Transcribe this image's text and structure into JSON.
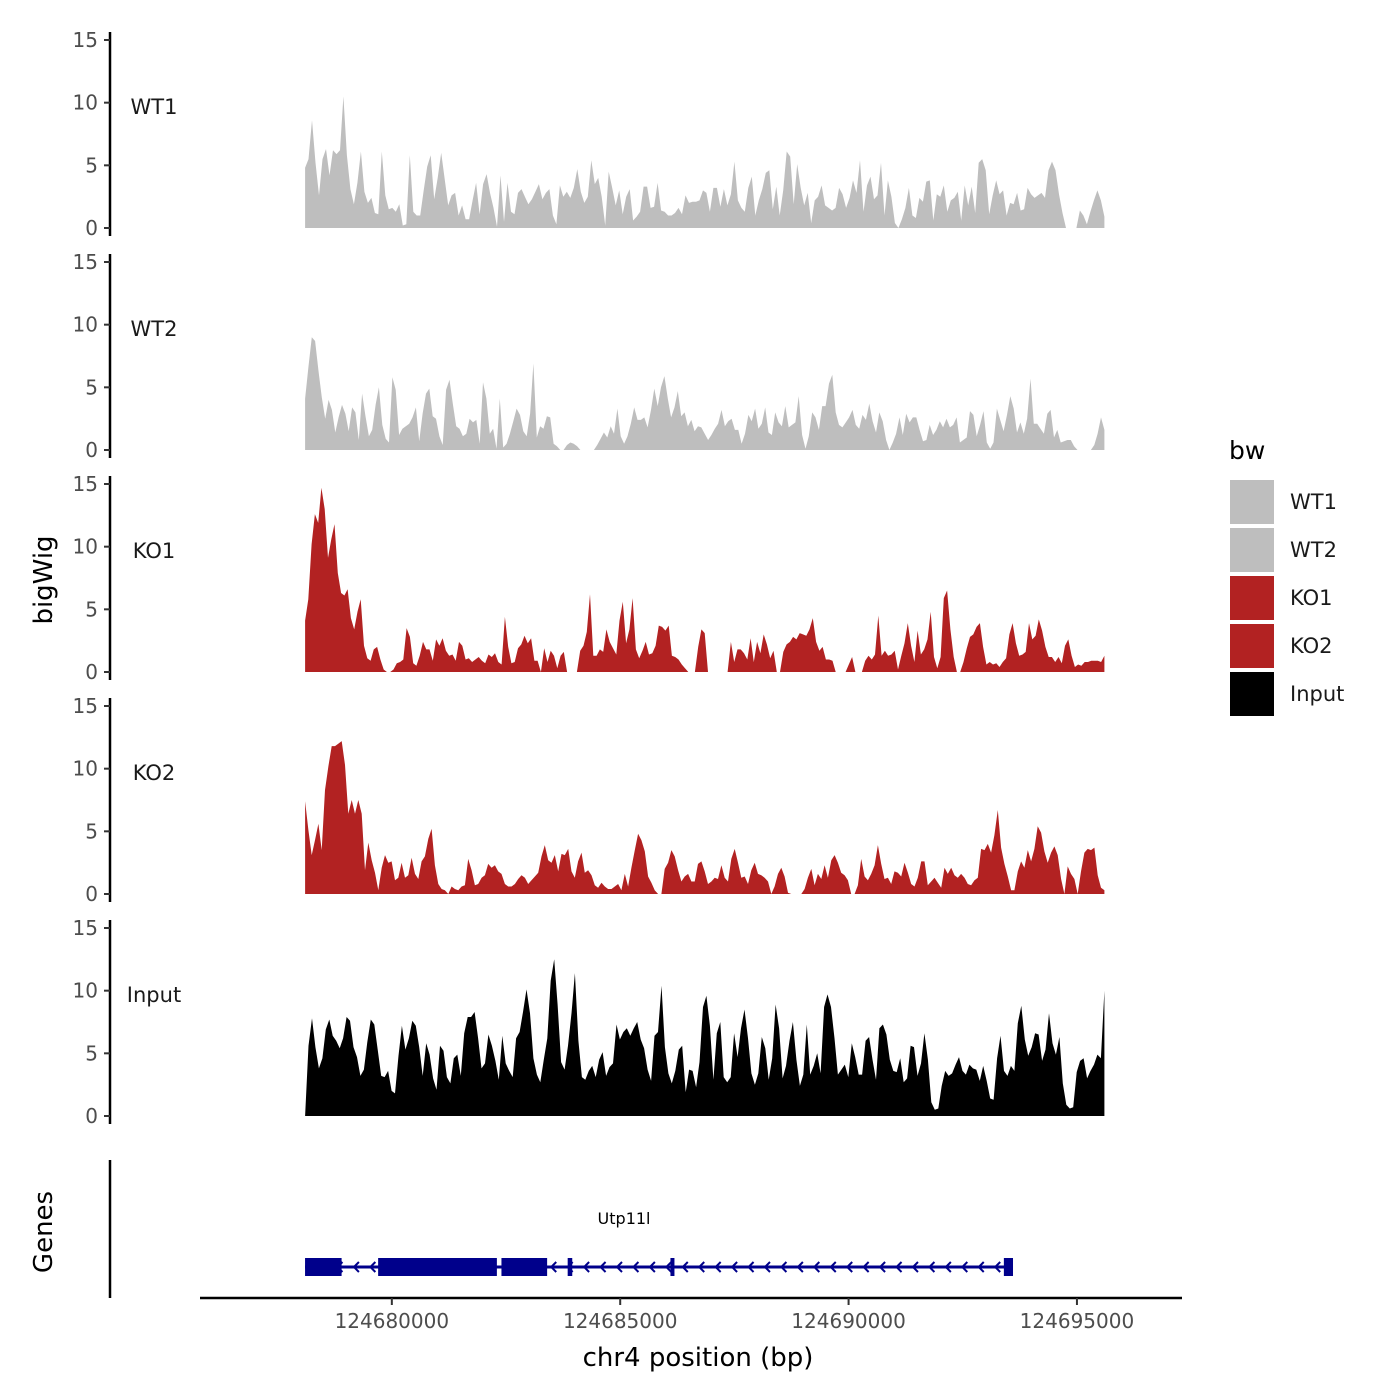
{
  "chart_data": {
    "type": "area",
    "ylabel": "bigWig",
    "xlabel": "chr4 position (bp)",
    "xlim": [
      124675800,
      124697300
    ],
    "x_ticks": [
      124680000,
      124685000,
      124690000,
      124695000
    ],
    "x_tick_labels": [
      "124680000",
      "124685000",
      "124690000",
      "124695000"
    ],
    "data_range": [
      124678100,
      124695600
    ],
    "y_ticks": [
      0,
      5,
      10,
      15
    ],
    "y_tick_labels": [
      "0",
      "5",
      "10",
      "15"
    ],
    "ylim": [
      0,
      15
    ],
    "tracks": [
      {
        "name": "WT1",
        "color": "#bebebe",
        "values": [
          4.8,
          5.5,
          8.6,
          5.2,
          2.6,
          5.5,
          6.3,
          4.2,
          6.2,
          5.9,
          6.2,
          10.5,
          5.8,
          3.1,
          1.9,
          3.6,
          6.1,
          2.9,
          2.0,
          2.4,
          1.2,
          1.1,
          6.1,
          2.6,
          1.5,
          1.6,
          1.3,
          1.9,
          0.2,
          0.3,
          5.8,
          1.3,
          1.0,
          1.0,
          3.0,
          4.9,
          5.8,
          2.3,
          4.0,
          6.0,
          3.9,
          1.8,
          2.6,
          2.8,
          1.0,
          1.8,
          0.7,
          0.7,
          2.2,
          3.6,
          1.1,
          3.5,
          4.3,
          2.8,
          1.6,
          0.1,
          4.2,
          0.5,
          3.6,
          1.3,
          1.1,
          2.8,
          3.1,
          2.5,
          1.9,
          2.3,
          2.9,
          3.5,
          2.3,
          2.8,
          3.1,
          1.0,
          0.3,
          3.4,
          2.5,
          2.9,
          2.4,
          3.2,
          4.7,
          2.9,
          2.0,
          2.5,
          5.4,
          3.5,
          4.0,
          2.5,
          0.2,
          4.5,
          3.2,
          1.8,
          3.0,
          1.1,
          2.5,
          3.1,
          0.6,
          0.9,
          1.3,
          3.3,
          3.3,
          1.6,
          1.7,
          3.6,
          1.4,
          1.3,
          1.0,
          1.0,
          1.2,
          1.6,
          1.1,
          2.6,
          2.0,
          2.1,
          2.1,
          2.2,
          3.0,
          2.8,
          1.3,
          3.2,
          3.2,
          1.7,
          3.1,
          1.8,
          2.7,
          5.3,
          2.2,
          1.6,
          1.3,
          3.2,
          4.1,
          1.0,
          2.2,
          3.1,
          4.4,
          4.6,
          1.5,
          3.3,
          1.0,
          3.0,
          6.1,
          5.7,
          1.9,
          5.1,
          3.2,
          1.8,
          2.8,
          0.4,
          2.2,
          2.5,
          3.4,
          1.8,
          1.6,
          1.4,
          1.6,
          3.2,
          2.7,
          1.6,
          2.4,
          3.8,
          2.8,
          5.4,
          1.3,
          3.4,
          4.1,
          2.3,
          2.6,
          5.2,
          1.0,
          3.8,
          2.5,
          0.4,
          0.0,
          0.7,
          1.6,
          3.2,
          1.0,
          0.8,
          2.4,
          2.1,
          3.7,
          3.8,
          0.6,
          2.7,
          2.5,
          3.4,
          1.3,
          2.2,
          2.4,
          2.9,
          0.6,
          3.4,
          1.8,
          3.3,
          1.2,
          5.2,
          5.5,
          4.6,
          1.1,
          2.6,
          3.8,
          2.7,
          3.0,
          1.0,
          2.0,
          1.9,
          2.8,
          1.4,
          1.5,
          3.2,
          2.7,
          2.4,
          2.6,
          2.8,
          2.4,
          4.6,
          5.3,
          4.6,
          2.7,
          1.2,
          0.0,
          0.0,
          0.0,
          0.0,
          1.4,
          1.0,
          0.3,
          1.3,
          2.2,
          3.0,
          2.2,
          0.9
        ]
      },
      {
        "name": "WT2",
        "color": "#bebebe",
        "values": [
          4.1,
          6.6,
          9.0,
          8.7,
          6.3,
          4.2,
          2.5,
          4.0,
          3.2,
          1.4,
          2.6,
          3.6,
          2.9,
          1.5,
          3.4,
          3.0,
          0.8,
          4.5,
          2.7,
          1.1,
          1.6,
          3.6,
          5.0,
          2.0,
          0.9,
          0.6,
          5.8,
          4.8,
          1.2,
          1.7,
          1.9,
          2.1,
          2.6,
          3.4,
          0.7,
          2.9,
          4.5,
          4.9,
          2.7,
          2.5,
          1.1,
          0.4,
          4.8,
          5.6,
          3.7,
          1.9,
          1.7,
          1.1,
          1.3,
          2.5,
          2.2,
          2.4,
          0.5,
          5.4,
          4.1,
          1.3,
          1.7,
          0.1,
          4.1,
          0.2,
          0.5,
          1.3,
          2.3,
          3.3,
          2.8,
          1.5,
          1.1,
          2.9,
          6.9,
          1.0,
          1.9,
          1.7,
          2.7,
          2.6,
          0.5,
          0.3,
          0.0,
          0.0,
          0.4,
          0.6,
          0.5,
          0.3,
          0.0,
          0.0,
          0.0,
          0.0,
          0.0,
          0.4,
          0.9,
          1.4,
          1.0,
          1.9,
          1.3,
          3.3,
          1.1,
          0.5,
          1.1,
          2.1,
          3.4,
          2.4,
          2.4,
          2.6,
          1.8,
          3.2,
          4.9,
          3.5,
          5.0,
          5.9,
          4.1,
          2.6,
          3.4,
          4.7,
          2.7,
          3.0,
          1.9,
          2.4,
          1.5,
          1.9,
          1.8,
          1.3,
          0.8,
          1.2,
          1.7,
          2.1,
          3.2,
          1.9,
          2.3,
          2.5,
          1.6,
          1.6,
          0.5,
          1.3,
          2.8,
          2.3,
          3.3,
          1.7,
          2.1,
          3.4,
          1.4,
          1.2,
          3.0,
          2.2,
          1.9,
          3.5,
          1.8,
          2.0,
          2.2,
          4.3,
          1.2,
          0.1,
          1.1,
          3.0,
          2.6,
          1.6,
          3.5,
          3.5,
          5.3,
          6.0,
          3.0,
          2.0,
          1.8,
          2.2,
          2.6,
          3.2,
          2.0,
          1.7,
          2.8,
          2.4,
          3.7,
          2.3,
          1.4,
          3.0,
          2.3,
          0.8,
          0.0,
          0.6,
          1.3,
          2.6,
          1.2,
          2.9,
          2.2,
          2.6,
          2.6,
          1.6,
          0.7,
          0.8,
          2.0,
          1.2,
          1.6,
          2.3,
          1.8,
          2.5,
          1.8,
          2.0,
          2.6,
          0.6,
          0.8,
          1.0,
          3.1,
          2.8,
          1.1,
          2.0,
          3.1,
          0.6,
          0.1,
          0.6,
          3.3,
          2.4,
          1.5,
          2.8,
          4.3,
          3.3,
          1.4,
          2.2,
          1.3,
          2.5,
          5.7,
          2.1,
          2.1,
          1.7,
          1.3,
          2.9,
          3.2,
          1.0,
          1.6,
          0.6,
          0.7,
          0.8,
          0.8,
          0.3,
          0.0,
          0.0,
          0.0,
          0.0,
          0.0,
          0.4,
          1.3,
          2.6,
          1.6
        ]
      },
      {
        "name": "KO1",
        "color": "#b22222",
        "values": [
          4.1,
          5.8,
          10.2,
          12.6,
          11.9,
          14.7,
          13.0,
          9.1,
          10.6,
          11.8,
          7.9,
          6.3,
          6.1,
          6.6,
          4.3,
          3.4,
          4.8,
          5.8,
          2.1,
          1.1,
          0.9,
          1.8,
          2.0,
          1.0,
          0.2,
          0.0,
          0.0,
          0.2,
          0.7,
          0.8,
          1.0,
          3.5,
          2.8,
          0.7,
          0.5,
          1.3,
          2.4,
          1.8,
          1.8,
          0.9,
          2.6,
          2.1,
          2.7,
          1.7,
          1.3,
          1.4,
          0.9,
          2.4,
          2.1,
          1.0,
          1.1,
          0.8,
          1.0,
          1.2,
          0.9,
          0.7,
          1.4,
          1.2,
          1.5,
          0.8,
          0.6,
          4.4,
          2.0,
          0.7,
          0.8,
          1.9,
          2.2,
          2.9,
          2.3,
          2.7,
          0.9,
          0.9,
          0.0,
          1.9,
          0.8,
          1.7,
          1.3,
          0.3,
          1.3,
          1.6,
          0.0,
          0.0,
          0.0,
          0.0,
          1.7,
          2.1,
          3.2,
          6.2,
          1.3,
          1.3,
          1.8,
          1.6,
          3.4,
          2.4,
          1.9,
          1.4,
          4.1,
          5.6,
          2.3,
          3.4,
          5.9,
          1.8,
          1.1,
          1.7,
          2.4,
          1.4,
          1.5,
          2.1,
          3.7,
          3.6,
          3.3,
          3.7,
          1.3,
          1.2,
          1.0,
          0.6,
          0.3,
          0.0,
          0.0,
          0.0,
          2.0,
          3.4,
          3.1,
          0.0,
          0.0,
          0.0,
          0.0,
          0.0,
          0.0,
          0.0,
          2.4,
          0.8,
          1.8,
          1.8,
          1.5,
          1.0,
          2.7,
          0.8,
          2.4,
          1.5,
          3.0,
          2.2,
          1.1,
          1.7,
          0.0,
          0.0,
          1.6,
          2.2,
          2.4,
          2.8,
          2.6,
          3.1,
          3.0,
          2.9,
          3.4,
          4.3,
          2.4,
          1.7,
          2.0,
          1.0,
          1.0,
          0.9,
          0.0,
          0.0,
          0.0,
          0.0,
          0.6,
          1.2,
          0.0,
          0.0,
          0.0,
          0.9,
          1.3,
          1.0,
          1.4,
          4.5,
          1.3,
          1.7,
          1.3,
          1.4,
          1.7,
          0.2,
          1.3,
          2.3,
          3.9,
          2.1,
          0.8,
          3.3,
          1.4,
          1.8,
          2.6,
          4.8,
          1.2,
          0.3,
          1.2,
          5.9,
          6.5,
          3.4,
          1.2,
          0.0,
          0.0,
          0.8,
          1.9,
          2.8,
          3.0,
          3.6,
          3.9,
          2.0,
          0.6,
          0.8,
          0.6,
          0.7,
          0.4,
          0.8,
          1.1,
          3.0,
          3.9,
          2.3,
          1.3,
          1.4,
          1.6,
          3.9,
          2.6,
          2.9,
          4.2,
          3.3,
          2.0,
          1.2,
          1.2,
          0.8,
          1.2,
          0.7,
          2.1,
          2.6,
          1.3,
          0.4,
          0.6,
          0.5,
          0.8,
          0.8,
          0.9,
          0.9,
          0.9,
          0.8,
          1.3
        ]
      },
      {
        "name": "KO2",
        "color": "#b22222",
        "values": [
          7.4,
          5.1,
          3.1,
          4.3,
          5.6,
          3.5,
          8.3,
          10.2,
          11.8,
          11.8,
          12.0,
          12.2,
          10.3,
          6.4,
          7.5,
          6.4,
          7.5,
          6.4,
          1.9,
          4.1,
          2.7,
          1.7,
          0.3,
          2.1,
          3.1,
          2.5,
          2.6,
          1.1,
          1.3,
          2.5,
          1.3,
          1.5,
          2.9,
          1.6,
          1.2,
          2.6,
          3.0,
          4.4,
          5.2,
          2.3,
          0.8,
          0.4,
          0.3,
          0.0,
          0.6,
          0.4,
          0.3,
          0.6,
          0.7,
          2.8,
          1.9,
          0.7,
          0.8,
          1.3,
          1.5,
          2.4,
          2.1,
          2.3,
          1.8,
          1.6,
          0.8,
          0.6,
          0.6,
          0.8,
          1.2,
          1.5,
          1.3,
          0.8,
          1.1,
          1.4,
          1.7,
          3.0,
          3.9,
          2.7,
          2.5,
          3.1,
          1.8,
          3.2,
          3.1,
          3.6,
          1.8,
          1.3,
          2.6,
          3.3,
          1.7,
          1.9,
          1.5,
          0.7,
          0.5,
          0.9,
          0.6,
          0.4,
          0.4,
          0.6,
          0.8,
          0.3,
          1.6,
          0.6,
          2.1,
          3.5,
          4.8,
          4.3,
          3.4,
          1.4,
          0.9,
          0.3,
          0.0,
          0.0,
          2.0,
          2.5,
          3.5,
          3.0,
          1.9,
          1.0,
          1.4,
          1.6,
          1.0,
          1.0,
          2.4,
          2.6,
          1.8,
          0.8,
          1.0,
          1.3,
          1.2,
          2.3,
          1.3,
          1.0,
          2.8,
          3.6,
          2.5,
          1.3,
          1.4,
          0.8,
          1.9,
          2.5,
          1.6,
          1.5,
          1.3,
          1.0,
          0.0,
          0.6,
          1.6,
          2.1,
          1.4,
          0.1,
          0.0,
          0.0,
          0.0,
          0.0,
          0.4,
          1.3,
          2.0,
          0.7,
          1.6,
          1.2,
          2.3,
          1.3,
          2.7,
          3.1,
          2.5,
          1.7,
          1.5,
          1.1,
          0.0,
          0.0,
          0.7,
          2.8,
          1.4,
          1.1,
          1.6,
          2.3,
          3.9,
          2.4,
          1.2,
          1.3,
          0.8,
          1.8,
          1.7,
          1.4,
          2.5,
          1.7,
          0.8,
          0.6,
          1.3,
          2.6,
          2.6,
          0.7,
          1.0,
          1.3,
          0.9,
          0.5,
          2.1,
          1.6,
          2.1,
          1.5,
          1.3,
          1.6,
          1.3,
          0.8,
          0.7,
          1.1,
          1.3,
          3.6,
          3.5,
          4.0,
          3.3,
          4.7,
          6.7,
          3.7,
          2.4,
          1.4,
          0.3,
          0.3,
          1.8,
          2.6,
          2.1,
          3.5,
          2.6,
          3.6,
          5.4,
          4.9,
          3.4,
          2.5,
          3.3,
          3.8,
          3.1,
          1.2,
          0.0,
          2.2,
          1.6,
          1.2,
          0.0,
          1.8,
          3.3,
          3.6,
          3.5,
          3.7,
          1.5,
          0.5,
          0.3
        ]
      },
      {
        "name": "Input",
        "color": "#000000",
        "values": [
          0.0,
          5.6,
          7.8,
          5.5,
          3.8,
          4.6,
          6.9,
          7.7,
          6.4,
          6.0,
          5.4,
          6.2,
          7.9,
          7.6,
          5.5,
          4.7,
          3.2,
          3.7,
          5.9,
          7.7,
          7.3,
          5.3,
          3.2,
          3.1,
          3.6,
          2.0,
          1.8,
          4.8,
          7.2,
          5.3,
          6.2,
          7.6,
          7.2,
          5.5,
          3.2,
          5.8,
          4.9,
          3.0,
          2.1,
          5.6,
          5.2,
          3.1,
          2.6,
          4.6,
          4.9,
          3.2,
          6.6,
          7.9,
          7.9,
          8.3,
          6.2,
          3.8,
          4.2,
          6.5,
          5.6,
          4.4,
          2.9,
          6.4,
          4.2,
          3.6,
          3.1,
          6.2,
          6.7,
          8.3,
          10.1,
          8.2,
          4.6,
          3.3,
          2.7,
          4.5,
          6.2,
          10.8,
          12.5,
          8.9,
          4.3,
          3.7,
          5.6,
          8.2,
          11.4,
          6.0,
          3.1,
          2.9,
          3.6,
          4.0,
          3.1,
          4.5,
          5.1,
          3.2,
          3.9,
          4.2,
          7.3,
          6.1,
          6.7,
          7.0,
          6.4,
          7.0,
          7.5,
          6.1,
          5.4,
          3.7,
          2.8,
          6.4,
          6.7,
          10.4,
          5.5,
          3.4,
          2.6,
          3.6,
          5.3,
          5.6,
          1.9,
          3.7,
          3.6,
          2.3,
          4.3,
          8.7,
          9.6,
          7.2,
          2.9,
          6.6,
          7.5,
          3.1,
          2.7,
          3.1,
          6.6,
          4.7,
          7.0,
          8.5,
          6.2,
          3.4,
          2.5,
          3.4,
          6.3,
          5.4,
          2.9,
          4.6,
          8.9,
          7.0,
          3.0,
          4.0,
          6.0,
          7.5,
          4.5,
          2.4,
          3.3,
          7.3,
          3.3,
          4.0,
          5.0,
          3.4,
          8.7,
          9.7,
          8.7,
          6.2,
          3.3,
          3.7,
          4.1,
          3.1,
          5.8,
          4.7,
          3.3,
          3.3,
          6.0,
          6.3,
          4.5,
          2.9,
          7.0,
          7.3,
          6.5,
          4.5,
          3.6,
          3.5,
          4.6,
          2.7,
          3.0,
          5.6,
          5.5,
          3.2,
          4.2,
          6.6,
          4.5,
          1.1,
          0.5,
          0.6,
          2.4,
          3.6,
          3.2,
          3.4,
          4.1,
          4.7,
          3.6,
          3.3,
          4.1,
          3.8,
          3.7,
          2.8,
          4.0,
          2.8,
          1.4,
          1.3,
          4.6,
          6.4,
          3.6,
          3.2,
          4.0,
          3.6,
          7.4,
          8.8,
          6.1,
          4.8,
          5.5,
          6.6,
          6.5,
          4.4,
          5.3,
          8.2,
          5.8,
          4.9,
          6.3,
          2.6,
          0.9,
          0.6,
          0.7,
          3.5,
          4.4,
          4.6,
          3.0,
          3.6,
          4.1,
          4.9,
          4.6,
          10.0
        ]
      }
    ],
    "gene_track": {
      "ylabel": "Genes",
      "gene_name": "Utp11l",
      "color": "#00008b",
      "start": 124678100,
      "end": 124693600,
      "strand": "-",
      "exons": [
        [
          124678100,
          124678900
        ],
        [
          124679700,
          124682300
        ],
        [
          124682400,
          124683400
        ],
        [
          124683850,
          124683950
        ],
        [
          124686100,
          124686140
        ],
        [
          124693400,
          124693600
        ]
      ]
    },
    "legend": {
      "title": "bw",
      "position": "right",
      "entries": [
        {
          "label": "WT1",
          "color": "#bebebe"
        },
        {
          "label": "WT2",
          "color": "#bebebe"
        },
        {
          "label": "KO1",
          "color": "#b22222"
        },
        {
          "label": "KO2",
          "color": "#b22222"
        },
        {
          "label": "Input",
          "color": "#000000"
        }
      ]
    }
  }
}
